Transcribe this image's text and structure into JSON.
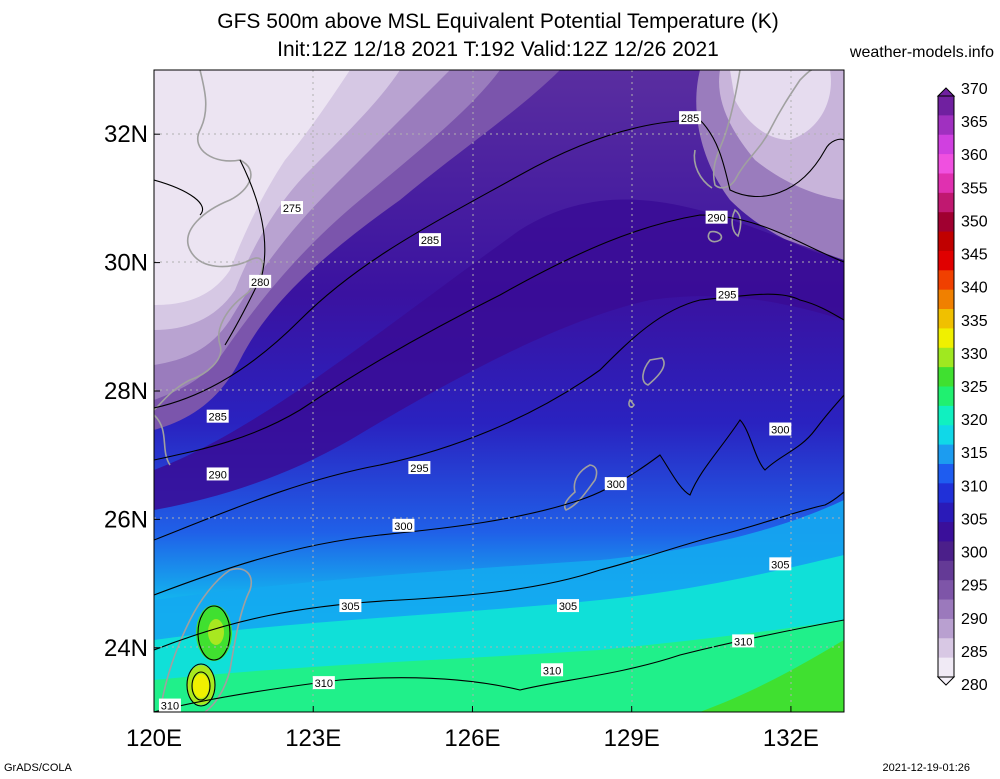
{
  "title": {
    "line1": "GFS 500m above MSL Equivalent Potential Temperature (K)",
    "line2": "Init:12Z 12/18 2021 T:192 Valid:12Z 12/26 2021"
  },
  "credit": "weather-models.info",
  "footer": {
    "left": "GrADS/COLA",
    "right": "2021-12-19-01:26"
  },
  "map": {
    "lon_range": [
      120,
      133
    ],
    "lat_range": [
      23,
      33
    ],
    "lon_ticks": [
      "120E",
      "123E",
      "126E",
      "129E",
      "132E"
    ],
    "lat_ticks": [
      "24N",
      "26N",
      "28N",
      "30N",
      "32N"
    ]
  },
  "colorbar": {
    "units": "K",
    "levels": [
      "280",
      "285",
      "290",
      "295",
      "300",
      "305",
      "310",
      "315",
      "320",
      "325",
      "330",
      "335",
      "340",
      "345",
      "350",
      "355",
      "360",
      "365",
      "370"
    ],
    "colors": [
      "#f0eaf5",
      "#d8c8e4",
      "#b9a0d0",
      "#9b79bc",
      "#7e55a8",
      "#643a96",
      "#4b1f8a",
      "#3a0f9a",
      "#2a1ab8",
      "#2030d8",
      "#1e5cf0",
      "#1c9cf0",
      "#10d8e8",
      "#10f0c0",
      "#20f070",
      "#40e030",
      "#a0e820",
      "#f0f000",
      "#f0c000",
      "#f08000",
      "#f04000",
      "#e00000",
      "#c00000",
      "#a00030",
      "#c01870",
      "#e030b0",
      "#f050e0",
      "#d040e0",
      "#a030c0",
      "#7020a0"
    ]
  },
  "contour_labels": [
    {
      "text": "275",
      "lon": 122.6,
      "lat": 30.85
    },
    {
      "text": "280",
      "lon": 122.0,
      "lat": 29.7
    },
    {
      "text": "285",
      "lon": 125.2,
      "lat": 30.35
    },
    {
      "text": "285",
      "lon": 121.2,
      "lat": 27.6
    },
    {
      "text": "285",
      "lon": 130.1,
      "lat": 32.25
    },
    {
      "text": "290",
      "lon": 130.6,
      "lat": 30.7
    },
    {
      "text": "290",
      "lon": 121.2,
      "lat": 26.7
    },
    {
      "text": "295",
      "lon": 130.8,
      "lat": 29.5
    },
    {
      "text": "295",
      "lon": 125.0,
      "lat": 26.8
    },
    {
      "text": "300",
      "lon": 131.8,
      "lat": 27.4
    },
    {
      "text": "300",
      "lon": 128.7,
      "lat": 26.55
    },
    {
      "text": "300",
      "lon": 124.7,
      "lat": 25.9
    },
    {
      "text": "305",
      "lon": 131.8,
      "lat": 25.3
    },
    {
      "text": "305",
      "lon": 127.8,
      "lat": 24.65
    },
    {
      "text": "305",
      "lon": 123.7,
      "lat": 24.65
    },
    {
      "text": "310",
      "lon": 131.1,
      "lat": 24.1
    },
    {
      "text": "310",
      "lon": 127.5,
      "lat": 23.65
    },
    {
      "text": "310",
      "lon": 123.2,
      "lat": 23.45
    },
    {
      "text": "310",
      "lon": 120.3,
      "lat": 23.1
    }
  ]
}
